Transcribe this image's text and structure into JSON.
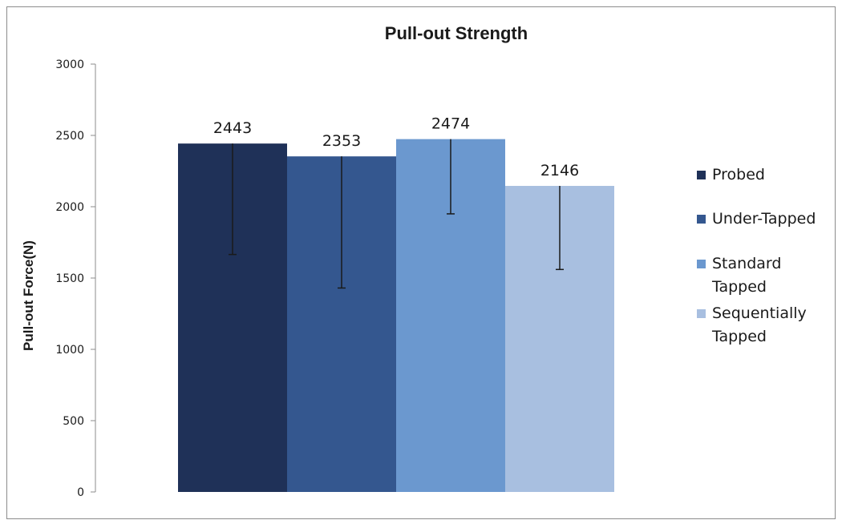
{
  "chart_data": {
    "type": "bar",
    "title": "Pull-out Strength",
    "xlabel": "",
    "ylabel": "Pull-out Force(N)",
    "ylim": [
      0,
      3000
    ],
    "yticks": [
      0,
      500,
      1000,
      1500,
      2000,
      2500,
      3000
    ],
    "grid": false,
    "legend_position": "right",
    "categories": [
      "Probed",
      "Under-Tapped",
      "Standard Tapped",
      "Sequentially Tapped"
    ],
    "values": [
      2443,
      2353,
      2474,
      2146
    ],
    "error_low": [
      1665,
      1430,
      1950,
      1560
    ],
    "data_labels": [
      "2443",
      "2353",
      "2474",
      "2146"
    ],
    "legend": [
      {
        "lines": [
          "Probed"
        ],
        "color": "#1f3158"
      },
      {
        "lines": [
          "Under-Tapped"
        ],
        "color": "#34578f"
      },
      {
        "lines": [
          "Standard",
          "Tapped"
        ],
        "color": "#6b98cf"
      },
      {
        "lines": [
          "Sequentially",
          "Tapped"
        ],
        "color": "#a8bfe0"
      }
    ],
    "colors": [
      "#1f3158",
      "#34578f",
      "#6b98cf",
      "#a8bfe0"
    ]
  }
}
